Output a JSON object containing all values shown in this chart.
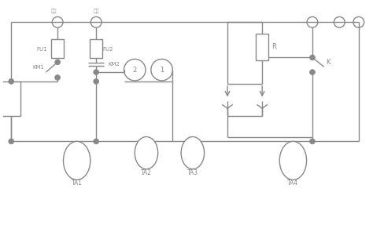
{
  "bg_color": "#ffffff",
  "line_color": "#888888",
  "line_width": 1.0,
  "figsize": [
    4.74,
    2.96
  ],
  "dpi": 100,
  "xlim": [
    0,
    47.4
  ],
  "ylim": [
    0,
    29.6
  ]
}
